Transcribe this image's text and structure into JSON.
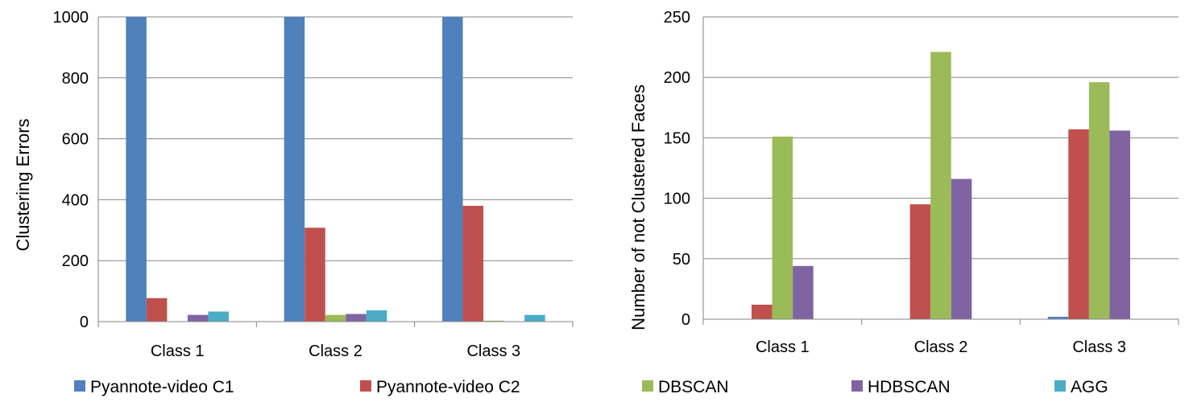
{
  "colors": {
    "Pyannote-video C1": "#4F81BD",
    "Pyannote-video C2": "#C0504D",
    "DBSCAN": "#9BBB59",
    "HDBSCAN": "#8064A2",
    "AGG": "#4BACC6"
  },
  "legend": {
    "items": [
      "Pyannote-video C1",
      "Pyannote-video C2",
      "DBSCAN",
      "HDBSCAN",
      "AGG"
    ],
    "placement": "bottom"
  },
  "chart_data": [
    {
      "type": "bar",
      "title": "",
      "xlabel": "",
      "ylabel": "Clustering Errors",
      "categories": [
        "Class 1",
        "Class 2",
        "Class 3"
      ],
      "ylim": [
        0,
        1000
      ],
      "yticks": [
        0,
        200,
        400,
        600,
        800,
        1000
      ],
      "grid": true,
      "series": [
        {
          "name": "Pyannote-video C1",
          "values": [
            1000,
            1000,
            1000
          ]
        },
        {
          "name": "Pyannote-video C2",
          "values": [
            77,
            308,
            380
          ]
        },
        {
          "name": "DBSCAN",
          "values": [
            0,
            22,
            3
          ]
        },
        {
          "name": "HDBSCAN",
          "values": [
            22,
            25,
            0
          ]
        },
        {
          "name": "AGG",
          "values": [
            33,
            37,
            22
          ]
        }
      ]
    },
    {
      "type": "bar",
      "title": "",
      "xlabel": "",
      "ylabel": "Number of not Clustered Faces",
      "categories": [
        "Class 1",
        "Class 2",
        "Class 3"
      ],
      "ylim": [
        0,
        250
      ],
      "yticks": [
        0,
        50,
        100,
        150,
        200,
        250
      ],
      "grid": true,
      "series": [
        {
          "name": "Pyannote-video C1",
          "values": [
            0,
            0,
            2
          ]
        },
        {
          "name": "Pyannote-video C2",
          "values": [
            12,
            95,
            157
          ]
        },
        {
          "name": "DBSCAN",
          "values": [
            151,
            221,
            196
          ]
        },
        {
          "name": "HDBSCAN",
          "values": [
            44,
            116,
            156
          ]
        },
        {
          "name": "AGG",
          "values": [
            0,
            0,
            0
          ]
        }
      ]
    }
  ]
}
